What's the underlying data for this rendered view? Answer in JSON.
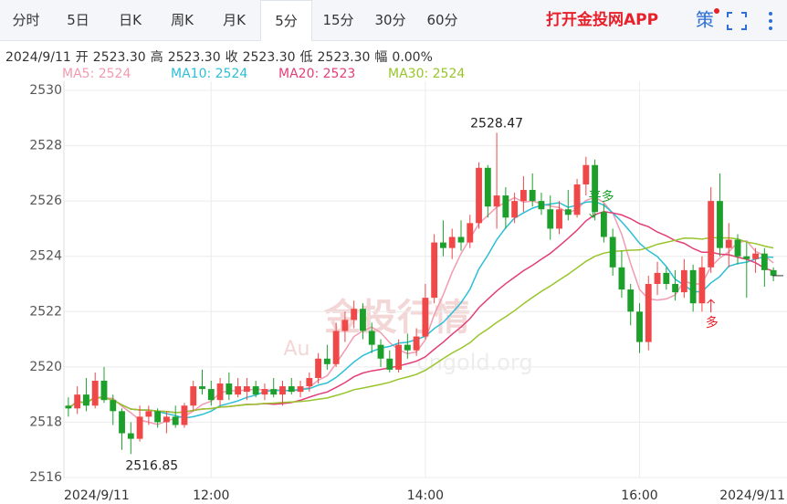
{
  "tabs": [
    "分时",
    "5日",
    "日K",
    "周K",
    "月K",
    "5分",
    "15分",
    "30分",
    "60分"
  ],
  "selected_tab": 5,
  "app_link": "打开金投网APP",
  "strategy_icon": "策",
  "info": {
    "date": "2024/9/11",
    "items": [
      {
        "label": "开",
        "value": "2523.30"
      },
      {
        "label": "高",
        "value": "2523.30"
      },
      {
        "label": "收",
        "value": "2523.30"
      },
      {
        "label": "低",
        "value": "2523.30"
      },
      {
        "label": "幅",
        "value": "0.00%"
      }
    ]
  },
  "watermark": [
    "金投行情",
    "Au",
    "cngold.org"
  ],
  "chart_data": {
    "type": "candlestick",
    "categories": [
      "2024/9/11",
      null,
      null,
      null,
      null,
      null,
      null,
      null,
      null,
      null,
      null,
      null,
      null,
      null,
      null,
      null,
      "12:00",
      null,
      null,
      null,
      null,
      null,
      null,
      null,
      null,
      null,
      null,
      null,
      null,
      null,
      null,
      null,
      null,
      null,
      null,
      null,
      null,
      null,
      null,
      null,
      "14:00",
      null,
      null,
      null,
      null,
      null,
      null,
      null,
      null,
      null,
      null,
      null,
      null,
      null,
      null,
      null,
      null,
      null,
      null,
      null,
      null,
      null,
      null,
      null,
      "16:00",
      null,
      null,
      null,
      null,
      null,
      null,
      null,
      null,
      null,
      null,
      null,
      null,
      null,
      null,
      "2024/9/11"
    ],
    "open": [
      2518.6,
      2518.5,
      2519.0,
      2518.6,
      2519.5,
      2518.8,
      2518.4,
      2517.6,
      2517.4,
      2518.2,
      2518.4,
      2518.0,
      2518.2,
      2517.9,
      2518.6,
      2519.3,
      2519.2,
      2518.8,
      2519.4,
      2519.0,
      2519.1,
      2519.3,
      2519.0,
      2519.2,
      2519.0,
      2519.3,
      2519.1,
      2519.3,
      2519.6,
      2520.3,
      2520.1,
      2521.3,
      2521.7,
      2522.1,
      2521.3,
      2520.8,
      2520.3,
      2519.9,
      2520.8,
      2520.6,
      2521.1,
      2522.5,
      2524.5,
      2524.3,
      2524.7,
      2524.5,
      2525.2,
      2527.2,
      2525.8,
      2526.2,
      2525.4,
      2526.0,
      2526.4,
      2526.0,
      2525.7,
      2525.0,
      2525.7,
      2525.5,
      2526.6,
      2527.3,
      2525.6,
      2524.7,
      2523.6,
      2522.8,
      2522.0,
      2520.9,
      2523.0,
      2523.4,
      2523.0,
      2522.7,
      2523.5,
      2522.3,
      2523.6,
      2526.0,
      2524.3,
      2524.6,
      2524.0,
      2523.9,
      2524.1,
      2523.5
    ],
    "high": [
      2518.9,
      2519.3,
      2519.6,
      2519.8,
      2520.0,
      2519.0,
      2518.5,
      2518.0,
      2518.6,
      2518.6,
      2518.5,
      2518.4,
      2518.6,
      2518.7,
      2519.5,
      2519.9,
      2519.5,
      2519.6,
      2519.8,
      2519.6,
      2519.6,
      2519.5,
      2519.4,
      2519.6,
      2519.5,
      2519.6,
      2519.5,
      2519.8,
      2520.5,
      2520.8,
      2521.6,
      2522.0,
      2522.4,
      2522.3,
      2521.6,
      2521.0,
      2520.6,
      2521.0,
      2521.2,
      2521.4,
      2523.0,
      2524.8,
      2525.3,
      2525.0,
      2525.3,
      2525.5,
      2527.4,
      2527.3,
      2528.47,
      2526.5,
      2526.3,
      2526.9,
      2527.0,
      2526.3,
      2526.2,
      2526.0,
      2526.4,
      2526.8,
      2527.6,
      2527.5,
      2525.9,
      2525.0,
      2524.2,
      2523.0,
      2522.3,
      2523.3,
      2523.8,
      2523.6,
      2523.5,
      2523.9,
      2523.7,
      2524.0,
      2526.5,
      2527.0,
      2525.2,
      2524.8,
      2524.5,
      2524.3,
      2524.3,
      2523.6
    ],
    "low": [
      2518.2,
      2518.3,
      2518.4,
      2518.5,
      2518.7,
      2517.9,
      2517.0,
      2516.85,
      2517.3,
      2517.9,
      2517.8,
      2517.6,
      2517.8,
      2517.8,
      2518.4,
      2519.0,
      2518.6,
      2518.6,
      2518.8,
      2518.9,
      2518.8,
      2518.9,
      2518.8,
      2518.9,
      2518.6,
      2519.0,
      2518.9,
      2519.1,
      2519.4,
      2519.9,
      2520.0,
      2520.9,
      2521.4,
      2521.0,
      2520.5,
      2520.0,
      2519.8,
      2519.8,
      2520.3,
      2520.4,
      2521.0,
      2522.3,
      2524.0,
      2523.9,
      2524.2,
      2524.3,
      2525.0,
      2525.4,
      2525.0,
      2525.0,
      2525.2,
      2525.6,
      2525.8,
      2525.5,
      2524.6,
      2524.8,
      2525.3,
      2525.4,
      2526.2,
      2525.3,
      2524.5,
      2523.3,
      2522.5,
      2521.5,
      2520.5,
      2520.6,
      2522.6,
      2522.8,
      2522.4,
      2522.5,
      2522.0,
      2522.0,
      2523.4,
      2524.0,
      2523.6,
      2523.7,
      2522.5,
      2523.4,
      2522.9,
      2523.1
    ],
    "close": [
      2518.5,
      2519.0,
      2518.6,
      2519.5,
      2518.8,
      2518.4,
      2517.6,
      2517.4,
      2518.2,
      2518.4,
      2518.0,
      2518.2,
      2517.9,
      2518.6,
      2519.3,
      2519.2,
      2518.8,
      2519.4,
      2519.0,
      2519.3,
      2519.3,
      2519.0,
      2519.2,
      2519.0,
      2519.3,
      2519.1,
      2519.3,
      2519.6,
      2520.3,
      2520.1,
      2521.3,
      2521.7,
      2522.1,
      2521.3,
      2520.8,
      2520.3,
      2519.9,
      2520.8,
      2520.6,
      2521.1,
      2522.5,
      2524.5,
      2524.3,
      2524.7,
      2524.5,
      2525.2,
      2527.2,
      2525.8,
      2526.2,
      2525.4,
      2526.0,
      2526.4,
      2526.0,
      2525.7,
      2525.0,
      2525.7,
      2525.5,
      2526.6,
      2527.3,
      2525.6,
      2524.7,
      2523.6,
      2522.8,
      2522.0,
      2520.9,
      2523.0,
      2523.4,
      2523.0,
      2522.7,
      2523.5,
      2522.3,
      2523.6,
      2526.0,
      2524.3,
      2524.6,
      2524.0,
      2523.9,
      2524.1,
      2523.5,
      2523.3
    ],
    "up_color": "#f04848",
    "down_color": "#1da02b",
    "ylim": [
      2516,
      2530
    ],
    "yticks": [
      2516,
      2518,
      2520,
      2522,
      2524,
      2526,
      2528,
      2530
    ],
    "grid": true,
    "moving_averages": [
      {
        "label": "MA5: 2524",
        "period": 5,
        "color": "#f29bb0"
      },
      {
        "label": "MA10: 2524",
        "period": 10,
        "color": "#2bbfd6"
      },
      {
        "label": "MA20: 2523",
        "period": 20,
        "color": "#e23e79"
      },
      {
        "label": "MA30: 2524",
        "period": 30,
        "color": "#98c52b"
      }
    ],
    "max_label": "2528.47",
    "min_label": "2516.85",
    "signals": [
      {
        "text": "平多",
        "color": "#1da02b",
        "direction": "down"
      },
      {
        "text": "多",
        "color": "#e8202a",
        "direction": "up"
      }
    ]
  }
}
